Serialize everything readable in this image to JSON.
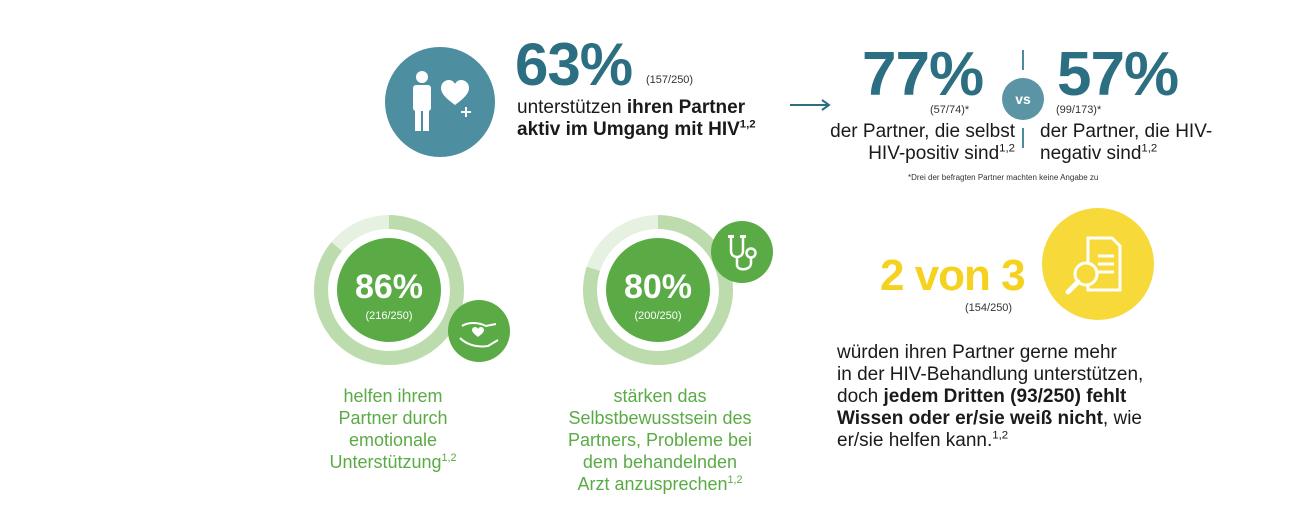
{
  "colors": {
    "teal": "#2d6f82",
    "teal_circle": "#5b94a5",
    "green_dark": "#5aab46",
    "green_light": "#bcdcae",
    "yellow": "#f5d21f"
  },
  "top": {
    "main_pct": "63%",
    "main_count": "(157/250)",
    "main_text_plain": "unterstützen ",
    "main_text_bold1": "ihren Partner",
    "main_text_bold2": "aktiv im Umgang mit HIV",
    "main_sup": "1,2",
    "icon": "person-heart-plus-icon",
    "arrow_icon": "arrow-right-icon",
    "left_pct": "77%",
    "left_count": "(57/74)*",
    "left_line1": "der Partner, die selbst",
    "left_line2": "HIV-positiv sind",
    "left_sup": "1,2",
    "vs_label": "vs",
    "right_pct": "57%",
    "right_count": "(99/173)*",
    "right_line1": "der Partner, die HIV-",
    "right_line2": "negativ sind",
    "right_sup": "1,2",
    "footnote": "*Drei der befragten Partner machten keine Angabe zu"
  },
  "rings": [
    {
      "pct": "86%",
      "count": "(216/250)",
      "fraction": 0.86,
      "icon": "hands-heart-icon",
      "label_lines": [
        "helfen ihrem",
        "Partner durch",
        "emotionale",
        "Unterstützung"
      ],
      "sup": "1,2"
    },
    {
      "pct": "80%",
      "count": "(200/250)",
      "fraction": 0.8,
      "icon": "stethoscope-icon",
      "label_lines": [
        "stärken das",
        "Selbstbewusstsein des",
        "Partners, Probleme bei",
        "dem behandelnden",
        "Arzt anzusprechen"
      ],
      "sup": "1,2"
    }
  ],
  "right_block": {
    "headline": "2 von 3",
    "count": "(154/250)",
    "icon": "document-search-icon",
    "line1": "würden ihren Partner gerne mehr",
    "line2": "in der HIV-Behandlung unterstützen,",
    "line3_plain": "doch ",
    "line3_bold": "jedem Dritten (93/250) fehlt",
    "line4_bold": "Wissen oder er/sie weiß nicht",
    "line4_plain": ", wie",
    "line5": "er/sie helfen kann.",
    "sup": "1,2"
  }
}
